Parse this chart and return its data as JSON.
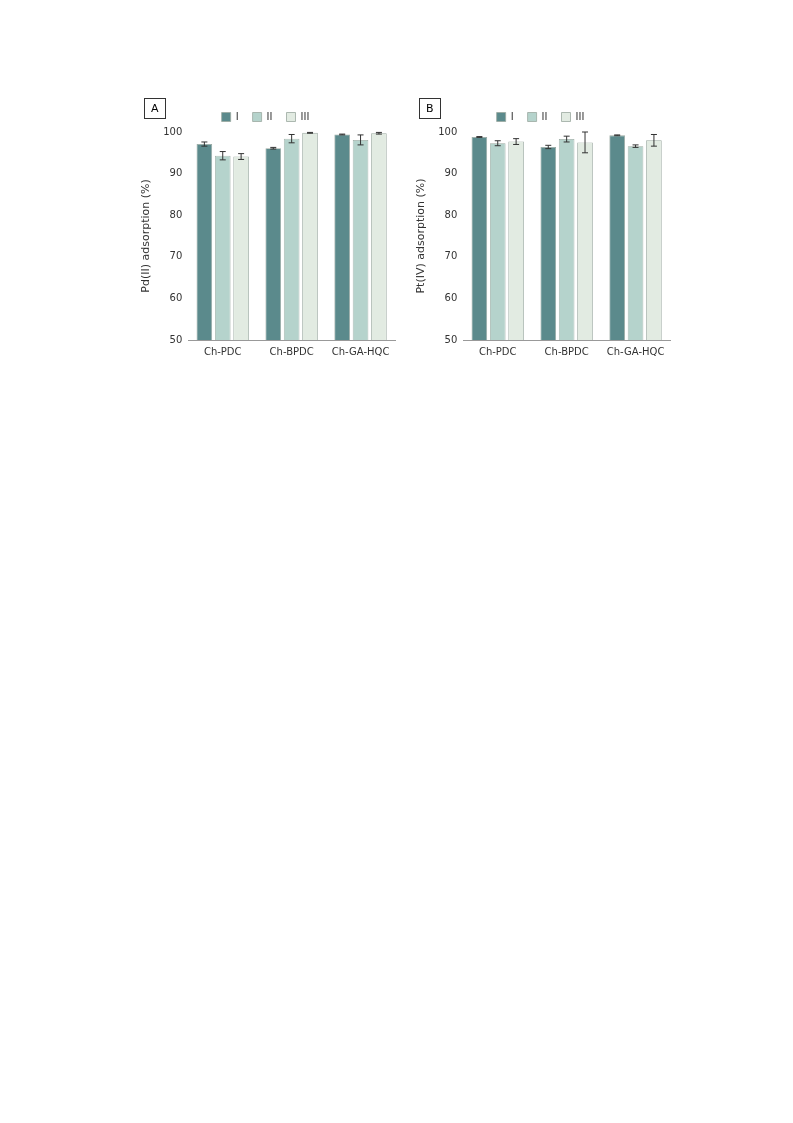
{
  "chart_data": [
    {
      "type": "bar",
      "title": "A",
      "ylabel": "Pd(II) adsorption (%)",
      "categories": [
        "Ch-PDC",
        "Ch-BPDC",
        "Ch-GA-HQC"
      ],
      "ylim": [
        50,
        100
      ],
      "yticks": [
        50,
        60,
        70,
        80,
        90,
        100
      ],
      "grid": false,
      "legend": "top",
      "series": [
        {
          "name": "I",
          "color": "#5b8a8c",
          "values": [
            97.1,
            96.1,
            99.4
          ],
          "errors": [
            0.5,
            0.2,
            0.1
          ]
        },
        {
          "name": "II",
          "color": "#b5d3cc",
          "values": [
            94.3,
            98.4,
            98.1
          ],
          "errors": [
            1.0,
            1.0,
            1.2
          ]
        },
        {
          "name": "III",
          "color": "#e2ebe2",
          "values": [
            94.1,
            99.8,
            99.7
          ],
          "errors": [
            0.7,
            0.1,
            0.2
          ]
        }
      ]
    },
    {
      "type": "bar",
      "title": "B",
      "ylabel": "Pt(IV) adsorption (%)",
      "categories": [
        "Ch-PDC",
        "Ch-BPDC",
        "Ch-GA-HQC"
      ],
      "ylim": [
        50,
        100
      ],
      "yticks": [
        50,
        60,
        70,
        80,
        90,
        100
      ],
      "grid": false,
      "legend": "top",
      "series": [
        {
          "name": "I",
          "color": "#5b8a8c",
          "values": [
            98.8,
            96.4,
            99.2
          ],
          "errors": [
            0.1,
            0.4,
            0.1
          ]
        },
        {
          "name": "II",
          "color": "#b5d3cc",
          "values": [
            97.3,
            98.3,
            96.6
          ],
          "errors": [
            0.6,
            0.7,
            0.3
          ]
        },
        {
          "name": "III",
          "color": "#e2ebe2",
          "values": [
            97.7,
            97.5,
            98.0
          ],
          "errors": [
            0.7,
            2.5,
            1.4
          ]
        }
      ]
    }
  ]
}
